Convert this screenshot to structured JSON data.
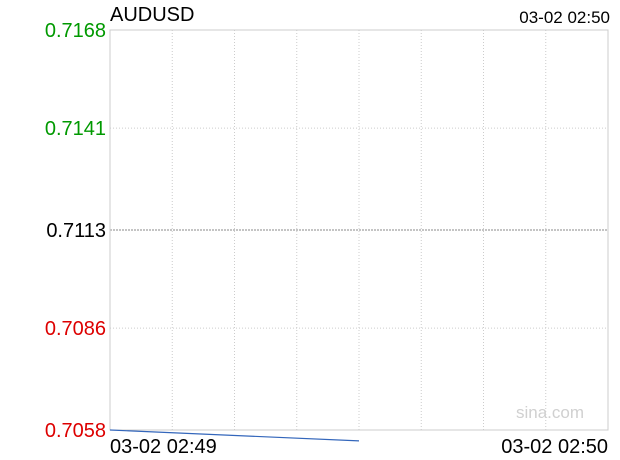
{
  "header": {
    "symbol": "AUDUSD",
    "timestamp": "03-02 02:50"
  },
  "watermark": "sina.com",
  "colors": {
    "up": "#009900",
    "down": "#dd0000",
    "neutral": "#000000",
    "line": "#3366bb",
    "grid": "#cccccc",
    "baseline": "#888888"
  },
  "chart_data": {
    "type": "line",
    "title": "AUDUSD",
    "xlabel": "",
    "ylabel": "",
    "x_tick_labels": [
      "03-02 02:49",
      "03-02 02:50"
    ],
    "y_ticks": [
      {
        "label": "0.7168",
        "value": 0.7168,
        "color": "#009900"
      },
      {
        "label": "0.7141",
        "value": 0.7141,
        "color": "#009900"
      },
      {
        "label": "0.7113",
        "value": 0.7113,
        "color": "#000000"
      },
      {
        "label": "0.7086",
        "value": 0.7086,
        "color": "#dd0000"
      },
      {
        "label": "0.7058",
        "value": 0.7058,
        "color": "#dd0000"
      }
    ],
    "ylim": [
      0.7058,
      0.7168
    ],
    "baseline": 0.7113,
    "grid": true,
    "series": [
      {
        "points": [
          {
            "t": 0.0,
            "y": 0.7058
          },
          {
            "t": 0.5,
            "y": 0.7055
          }
        ]
      }
    ]
  }
}
